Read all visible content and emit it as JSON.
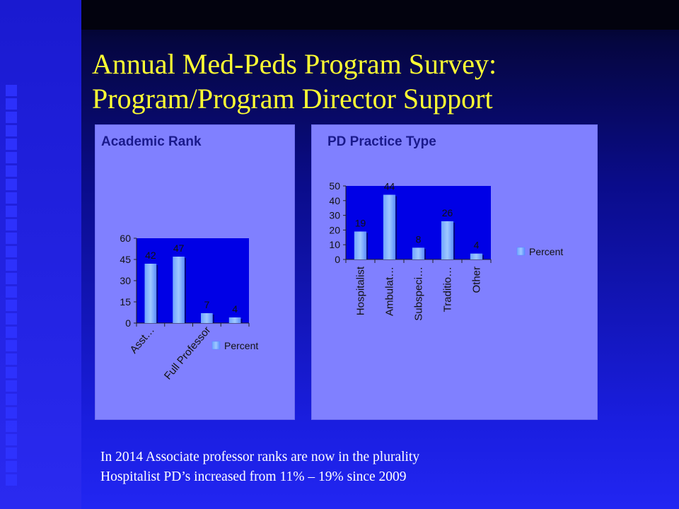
{
  "slide": {
    "title_line1": "Annual Med-Peds Program Survey:",
    "title_line2": "Program/Program Director Support",
    "notes": [
      "In 2014 Associate professor ranks are now in the plurality",
      "Hospitalist PD’s increased from 11% – 19% since 2009"
    ],
    "colors": {
      "title": "#ffff33",
      "panel": "#8080ff",
      "plot_area": "#0000e6",
      "bar": "#9ec8ff",
      "chart_title": "#1a1a8c"
    }
  },
  "chart_data": [
    {
      "type": "bar",
      "title": "Academic Rank",
      "categories": [
        "Asst…",
        "",
        "Full Professor",
        ""
      ],
      "series": [
        {
          "name": "Percent",
          "values": [
            42,
            47,
            7,
            4
          ]
        }
      ],
      "ylim": [
        0,
        60
      ],
      "yticks": [
        0,
        15,
        30,
        45,
        60
      ],
      "xlabel": "",
      "ylabel": "",
      "grid": false,
      "legend": "right"
    },
    {
      "type": "bar",
      "title": "PD Practice Type",
      "categories": [
        "Hospitalist",
        "Ambulat…",
        "Subspeci…",
        "Traditio…",
        "Other"
      ],
      "series": [
        {
          "name": "Percent",
          "values": [
            19,
            44,
            8,
            26,
            4
          ]
        }
      ],
      "ylim": [
        0,
        50
      ],
      "yticks": [
        0,
        10,
        20,
        30,
        40,
        50
      ],
      "xlabel": "",
      "ylabel": "",
      "grid": false,
      "legend": "right"
    }
  ]
}
